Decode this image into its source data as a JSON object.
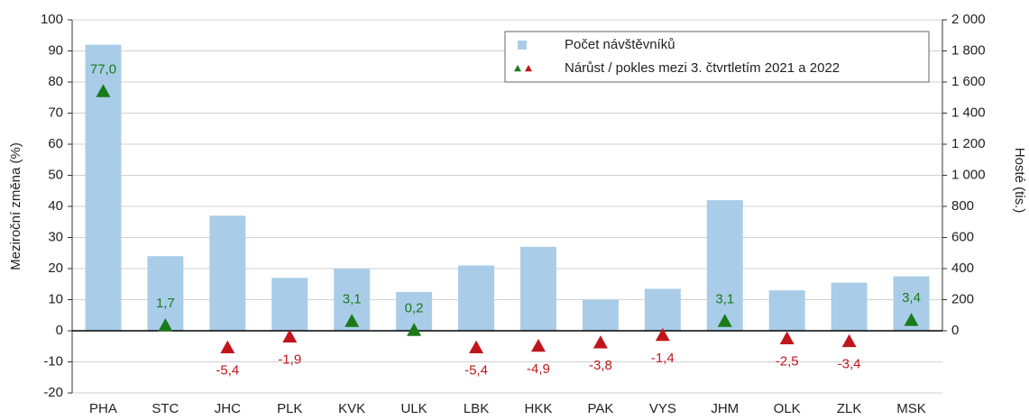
{
  "chart_data": {
    "type": "bar_triangle",
    "categories": [
      "PHA",
      "STC",
      "JHC",
      "PLK",
      "KVK",
      "ULK",
      "LBK",
      "HKK",
      "PAK",
      "VYS",
      "JHM",
      "OLK",
      "ZLK",
      "MSK"
    ],
    "ylabel": "Meziroční změna (%)",
    "y2label": "Hosté (tis.)",
    "ylim": [
      -20,
      100
    ],
    "yticks": [
      -20,
      -10,
      0,
      10,
      20,
      30,
      40,
      50,
      60,
      70,
      80,
      90,
      100
    ],
    "y2lim": [
      -400,
      2000
    ],
    "y2ticks": [
      0,
      200,
      400,
      600,
      800,
      {
        "value": 1000,
        "label": "1 000"
      },
      {
        "value": 1200,
        "label": "1 200"
      },
      {
        "value": 1400,
        "label": "1 400"
      },
      {
        "value": 1600,
        "label": "1 600"
      },
      {
        "value": 1800,
        "label": "1 800"
      },
      {
        "value": 2000,
        "label": "2 000"
      }
    ],
    "grid": true,
    "legend": "top-right",
    "series": [
      {
        "name": "Počet návštěvníků",
        "type": "bar",
        "axis": "y2",
        "color": "#a9cde8",
        "values": [
          1840,
          480,
          740,
          340,
          400,
          250,
          420,
          540,
          200,
          270,
          840,
          260,
          310,
          350
        ]
      },
      {
        "name": "Nárůst / pokles mezi 3. čtvrtletím 2021 a 2022",
        "type": "triangle",
        "axis": "y",
        "color_up": "#1a7a1a",
        "color_down": "#c0161b",
        "values": [
          77.0,
          1.7,
          -5.4,
          -1.9,
          3.1,
          0.2,
          -5.4,
          -4.9,
          -3.8,
          -1.4,
          3.1,
          -2.5,
          -3.4,
          3.4
        ],
        "value_labels": [
          "77,0",
          "1,7",
          "-5,4",
          "-1,9",
          "3,1",
          "0,2",
          "-5,4",
          "-4,9",
          "-3,8",
          "-1,4",
          "3,1",
          "-2,5",
          "-3,4",
          "3,4"
        ]
      }
    ]
  }
}
